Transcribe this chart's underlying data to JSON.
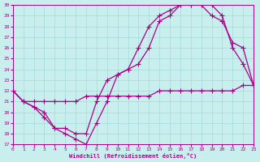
{
  "xlabel": "Windchill (Refroidissement éolien,°C)",
  "ylim": [
    17,
    30
  ],
  "xlim": [
    0,
    23
  ],
  "yticks": [
    17,
    18,
    19,
    20,
    21,
    22,
    23,
    24,
    25,
    26,
    27,
    28,
    29,
    30
  ],
  "xticks": [
    0,
    1,
    2,
    3,
    4,
    5,
    6,
    7,
    8,
    9,
    10,
    11,
    12,
    13,
    14,
    15,
    16,
    17,
    18,
    19,
    20,
    21,
    22,
    23
  ],
  "bg_color": "#c8eeed",
  "grid_color": "#a8d8d8",
  "line_color": "#aa0088",
  "line_width": 0.9,
  "marker": "+",
  "marker_size": 4,
  "series": [
    {
      "x": [
        0,
        1,
        2,
        3,
        4,
        5,
        6,
        7,
        8,
        9,
        10,
        11,
        12,
        13,
        14,
        15,
        16,
        17,
        18,
        19,
        20,
        21,
        22,
        23
      ],
      "y": [
        22,
        21,
        20.5,
        20,
        18.5,
        18,
        17.5,
        17,
        19,
        21,
        23.5,
        24,
        26,
        28,
        29,
        29.5,
        30,
        30,
        30,
        30,
        29,
        26,
        24.5,
        22.5
      ]
    },
    {
      "x": [
        0,
        1,
        2,
        3,
        4,
        5,
        6,
        7,
        8,
        9,
        10,
        11,
        12,
        13,
        14,
        15,
        16,
        17,
        18,
        19,
        20,
        21,
        22,
        23
      ],
      "y": [
        22,
        21,
        20.5,
        19.5,
        18.5,
        18.5,
        18,
        18,
        21,
        23,
        23.5,
        24,
        24.5,
        26,
        28.5,
        29,
        30,
        30,
        30,
        29,
        28.5,
        26.5,
        26,
        22.5
      ]
    },
    {
      "x": [
        0,
        1,
        2,
        3,
        4,
        5,
        6,
        7,
        8,
        9,
        10,
        11,
        12,
        13,
        14,
        15,
        16,
        17,
        18,
        19,
        20,
        21,
        22,
        23
      ],
      "y": [
        22,
        21,
        21,
        21,
        21,
        21,
        21,
        21.5,
        21.5,
        21.5,
        21.5,
        21.5,
        21.5,
        21.5,
        22,
        22,
        22,
        22,
        22,
        22,
        22,
        22,
        22.5,
        22.5
      ]
    }
  ]
}
